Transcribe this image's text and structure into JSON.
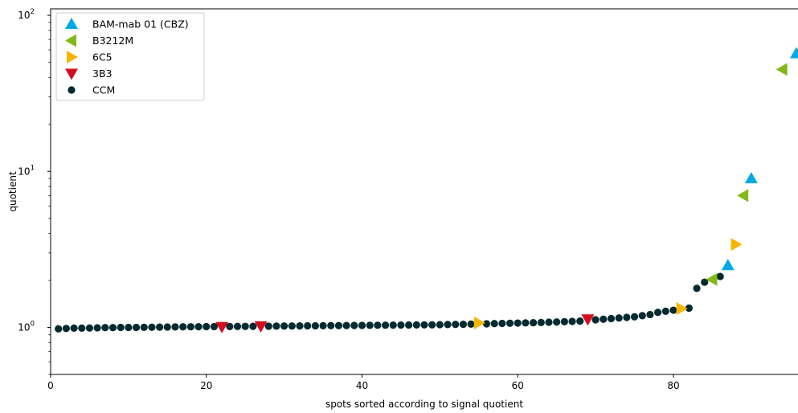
{
  "chart_data": {
    "type": "scatter",
    "title": "",
    "xlabel": "spots sorted according to signal quotient",
    "ylabel": "quotient",
    "xlim": [
      0,
      96
    ],
    "ylim": [
      0.5,
      110
    ],
    "yscale": "log",
    "x_ticks": [
      0,
      20,
      40,
      60,
      80
    ],
    "y_ticks": [
      {
        "value": 1,
        "label": "10",
        "exp": "0"
      },
      {
        "value": 10,
        "label": "10",
        "exp": "1"
      },
      {
        "value": 100,
        "label": "10",
        "exp": "2"
      }
    ],
    "legend_position": "upper-left",
    "series": [
      {
        "name": "BAM-mab 01 (CBZ)",
        "marker": "triangle-up",
        "color": "#00a9e6",
        "points": [
          [
            87,
            2.5
          ],
          [
            90,
            9.0
          ],
          [
            96,
            57.0
          ]
        ]
      },
      {
        "name": "B3212M",
        "marker": "triangle-left",
        "color": "#84b818",
        "points": [
          [
            85,
            2.03
          ],
          [
            89,
            7.0
          ],
          [
            94,
            45.0
          ]
        ]
      },
      {
        "name": "6C5",
        "marker": "triangle-right",
        "color": "#f7b500",
        "points": [
          [
            55,
            1.07
          ],
          [
            81,
            1.32
          ],
          [
            88,
            3.4
          ]
        ]
      },
      {
        "name": "3B3",
        "marker": "triangle-down",
        "color": "#d40d1f",
        "points": [
          [
            22,
            1.01
          ],
          [
            27,
            1.02
          ],
          [
            69,
            1.13
          ]
        ]
      },
      {
        "name": "CCM",
        "marker": "circle",
        "color": "#032a2f",
        "points": [
          [
            1,
            0.98
          ],
          [
            2,
            0.985
          ],
          [
            3,
            0.99
          ],
          [
            4,
            0.99
          ],
          [
            5,
            0.992
          ],
          [
            6,
            0.995
          ],
          [
            7,
            0.997
          ],
          [
            8,
            0.998
          ],
          [
            9,
            1.0
          ],
          [
            10,
            1.0
          ],
          [
            11,
            1.0
          ],
          [
            12,
            1.002
          ],
          [
            13,
            1.003
          ],
          [
            14,
            1.005
          ],
          [
            15,
            1.006
          ],
          [
            16,
            1.008
          ],
          [
            17,
            1.009
          ],
          [
            18,
            1.01
          ],
          [
            19,
            1.011
          ],
          [
            20,
            1.012
          ],
          [
            21,
            1.013
          ],
          [
            23,
            1.014
          ],
          [
            24,
            1.015
          ],
          [
            25,
            1.016
          ],
          [
            26,
            1.017
          ],
          [
            28,
            1.019
          ],
          [
            29,
            1.02
          ],
          [
            30,
            1.021
          ],
          [
            31,
            1.022
          ],
          [
            32,
            1.023
          ],
          [
            33,
            1.024
          ],
          [
            34,
            1.025
          ],
          [
            35,
            1.026
          ],
          [
            36,
            1.027
          ],
          [
            37,
            1.028
          ],
          [
            38,
            1.029
          ],
          [
            39,
            1.03
          ],
          [
            40,
            1.031
          ],
          [
            41,
            1.032
          ],
          [
            42,
            1.033
          ],
          [
            43,
            1.034
          ],
          [
            44,
            1.035
          ],
          [
            45,
            1.036
          ],
          [
            46,
            1.037
          ],
          [
            47,
            1.038
          ],
          [
            48,
            1.039
          ],
          [
            49,
            1.04
          ],
          [
            50,
            1.042
          ],
          [
            51,
            1.044
          ],
          [
            52,
            1.046
          ],
          [
            53,
            1.048
          ],
          [
            54,
            1.05
          ],
          [
            56,
            1.055
          ],
          [
            57,
            1.058
          ],
          [
            58,
            1.061
          ],
          [
            59,
            1.064
          ],
          [
            60,
            1.067
          ],
          [
            61,
            1.07
          ],
          [
            62,
            1.073
          ],
          [
            63,
            1.076
          ],
          [
            64,
            1.08
          ],
          [
            65,
            1.084
          ],
          [
            66,
            1.088
          ],
          [
            67,
            1.093
          ],
          [
            68,
            1.098
          ],
          [
            70,
            1.12
          ],
          [
            71,
            1.13
          ],
          [
            72,
            1.14
          ],
          [
            73,
            1.15
          ],
          [
            74,
            1.16
          ],
          [
            75,
            1.17
          ],
          [
            76,
            1.19
          ],
          [
            77,
            1.21
          ],
          [
            78,
            1.25
          ],
          [
            79,
            1.27
          ],
          [
            80,
            1.29
          ],
          [
            82,
            1.33
          ],
          [
            83,
            1.78
          ],
          [
            84,
            1.95
          ],
          [
            86,
            2.12
          ]
        ]
      }
    ]
  }
}
